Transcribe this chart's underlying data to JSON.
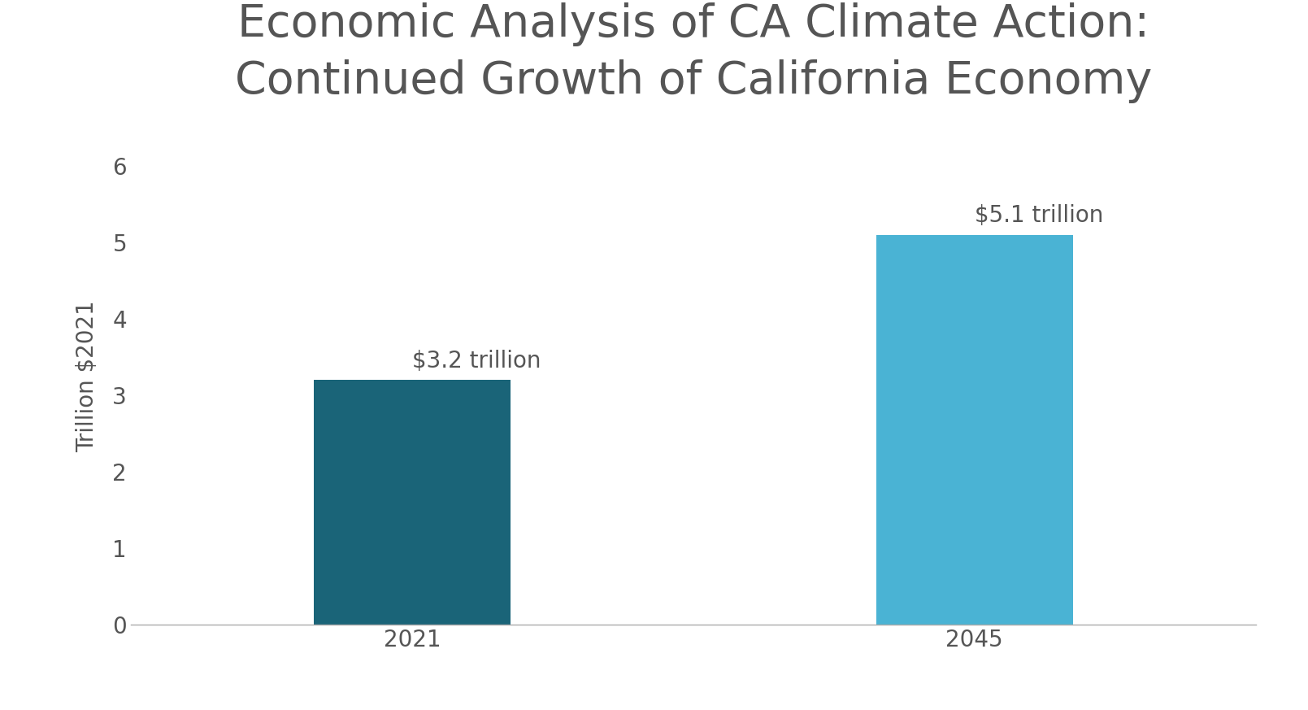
{
  "title": "Economic Analysis of CA Climate Action:\nContinued Growth of California Economy",
  "categories": [
    "2021",
    "2045"
  ],
  "values": [
    3.2,
    5.1
  ],
  "bar_colors": [
    "#1a6478",
    "#4ab3d4"
  ],
  "bar_labels": [
    "$3.2 trillion",
    "$5.1 trillion"
  ],
  "ylabel": "Trillion $2021",
  "ylim": [
    0,
    6.5
  ],
  "yticks": [
    0,
    1,
    2,
    3,
    4,
    5,
    6
  ],
  "title_fontsize": 40,
  "tick_fontsize": 20,
  "bar_label_fontsize": 20,
  "ylabel_fontsize": 20,
  "background_color": "#ffffff",
  "text_color": "#555555",
  "bar_width": 0.35
}
